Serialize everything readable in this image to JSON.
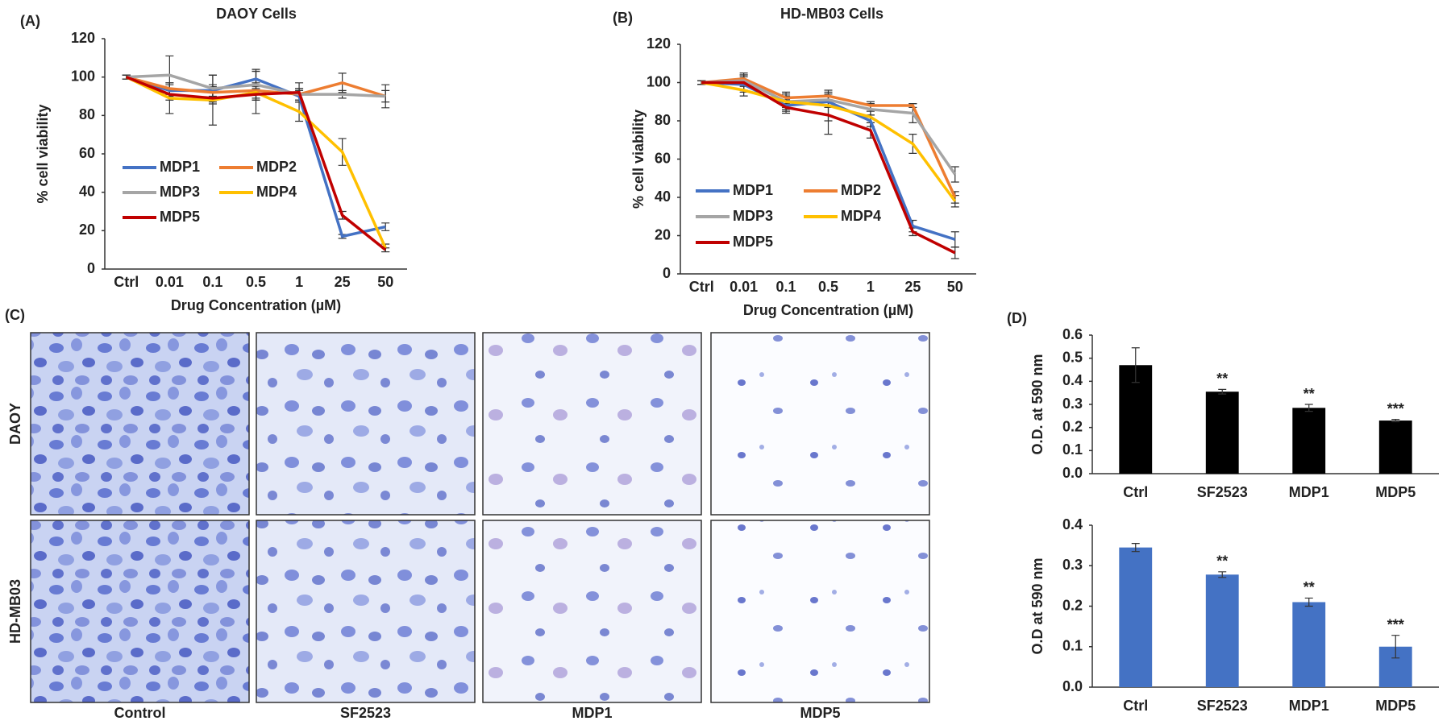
{
  "chart_data": [
    {
      "type": "line",
      "label": "(A)",
      "title": "DAOY Cells",
      "y_label": "% cell viability",
      "x_label": "Drug Concentration (µM)",
      "categories": [
        "Ctrl",
        "0.01",
        "0.1",
        "0.5",
        "1",
        "25",
        "50"
      ],
      "series": [
        {
          "name": "MDP1",
          "color": "#4472c4",
          "values": [
            100,
            93,
            93,
            99,
            90,
            17,
            22
          ],
          "errors": [
            1,
            3,
            3,
            4,
            3,
            1,
            2
          ]
        },
        {
          "name": "MDP2",
          "color": "#ed7d31",
          "values": [
            100,
            94,
            92,
            93,
            91,
            97,
            90
          ],
          "errors": [
            1,
            3,
            3,
            4,
            3,
            5,
            3
          ]
        },
        {
          "name": "MDP3",
          "color": "#a5a5a5",
          "values": [
            100,
            101,
            94,
            96,
            91,
            91,
            90
          ],
          "errors": [
            1,
            10,
            7,
            8,
            3,
            2,
            6
          ]
        },
        {
          "name": "MDP4",
          "color": "#ffc000",
          "values": [
            100,
            89,
            88,
            92,
            82,
            61,
            11
          ],
          "errors": [
            1,
            8,
            13,
            11,
            5,
            7,
            2
          ]
        },
        {
          "name": "MDP5",
          "color": "#c00000",
          "values": [
            100,
            91,
            89,
            91,
            92,
            28,
            10
          ],
          "errors": [
            1,
            3,
            3,
            3,
            5,
            2,
            1
          ]
        }
      ],
      "ylim": [
        0,
        120
      ],
      "yticks": [
        0,
        20,
        40,
        60,
        80,
        100,
        120
      ]
    },
    {
      "type": "line",
      "label": "(B)",
      "title": "HD-MB03 Cells",
      "y_label": "% cell viability",
      "x_label": "Drug Concentration (µM)",
      "categories": [
        "Ctrl",
        "0.01",
        "0.1",
        "0.5",
        "1",
        "25",
        "50"
      ],
      "series": [
        {
          "name": "MDP1",
          "color": "#4472c4",
          "values": [
            100,
            99,
            88,
            90,
            80,
            25,
            18
          ],
          "errors": [
            1,
            4,
            3,
            3,
            3,
            3,
            4
          ]
        },
        {
          "name": "MDP2",
          "color": "#ed7d31",
          "values": [
            100,
            102,
            92,
            93,
            88,
            88,
            40
          ],
          "errors": [
            1,
            3,
            3,
            2,
            2,
            1,
            3
          ]
        },
        {
          "name": "MDP3",
          "color": "#a5a5a5",
          "values": [
            100,
            101,
            90,
            91,
            86,
            84,
            52
          ],
          "errors": [
            1,
            3,
            4,
            3,
            3,
            5,
            4
          ]
        },
        {
          "name": "MDP4",
          "color": "#ffc000",
          "values": [
            100,
            96,
            90,
            88,
            82,
            68,
            38
          ],
          "errors": [
            1,
            3,
            3,
            8,
            3,
            5,
            3
          ]
        },
        {
          "name": "MDP5",
          "color": "#c00000",
          "values": [
            100,
            100,
            87,
            83,
            75,
            22,
            11
          ],
          "errors": [
            1,
            4,
            3,
            10,
            4,
            2,
            3
          ]
        }
      ],
      "ylim": [
        0,
        120
      ],
      "yticks": [
        0,
        20,
        40,
        60,
        80,
        100,
        120
      ]
    },
    {
      "type": "bar",
      "label": "(D)",
      "y_label": "O.D. at 590 nm",
      "categories": [
        "Ctrl",
        "SF2523",
        "MDP1",
        "MDP5"
      ],
      "values": [
        0.47,
        0.355,
        0.285,
        0.23
      ],
      "errors": [
        0.075,
        0.01,
        0.015,
        0.005
      ],
      "significance": [
        null,
        "**",
        "**",
        "***"
      ],
      "color": "#000000",
      "ylim": [
        0,
        0.6
      ],
      "yticks": [
        {
          "value": 0,
          "label": "0.0"
        },
        0.1,
        0.2,
        0.3,
        0.4,
        0.5,
        0.6
      ]
    },
    {
      "type": "bar",
      "y_label": "O.D at 590 nm",
      "categories": [
        "Ctrl",
        "SF2523",
        "MDP1",
        "MDP5"
      ],
      "values": [
        0.345,
        0.278,
        0.21,
        0.1
      ],
      "errors": [
        0.01,
        0.007,
        0.01,
        0.028
      ],
      "significance": [
        null,
        "**",
        "**",
        "***"
      ],
      "color": "#4472c4",
      "ylim": [
        0,
        0.4
      ],
      "yticks": [
        {
          "value": 0,
          "label": "0.0"
        },
        0.1,
        0.2,
        0.3,
        0.4
      ]
    }
  ],
  "micrographs": {
    "label": "(C)",
    "rows": [
      "DAOY",
      "HD-MB03"
    ],
    "columns": [
      "Control",
      "SF2523",
      "MDP1",
      "MDP5"
    ]
  }
}
